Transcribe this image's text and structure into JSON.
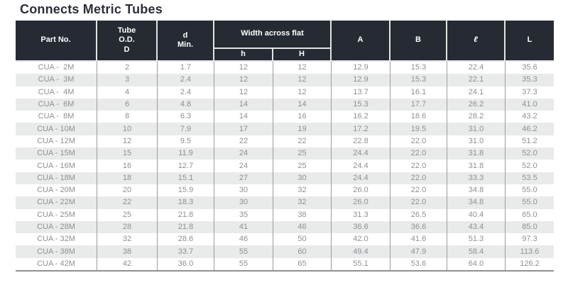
{
  "title": "Connects Metric Tubes",
  "colors": {
    "header_bg": "#262a33",
    "header_text": "#ffffff",
    "row_stripe": "#e9eaea",
    "data_text": "#8d9095",
    "grid_line": "#9c9c9c",
    "title_text": "#2b2f3a"
  },
  "table": {
    "headers": {
      "part_no": "Part No.",
      "tube_od": "Tube\nO.D.\nD",
      "d_min": "d\nMin.",
      "width_across_flat": "Width across flat",
      "h_small": "h",
      "h_big": "H",
      "a": "A",
      "b": "B",
      "ell": "ℓ",
      "l": "L"
    },
    "rows": [
      [
        "CUA -  2M",
        "2",
        "1.7",
        "12",
        "12",
        "12.9",
        "15.3",
        "22.4",
        "35.6"
      ],
      [
        "CUA -  3M",
        "3",
        "2.4",
        "12",
        "12",
        "12.9",
        "15.3",
        "22.1",
        "35.3"
      ],
      [
        "CUA -  4M",
        "4",
        "2.4",
        "12",
        "12",
        "13.7",
        "16.1",
        "24.1",
        "37.3"
      ],
      [
        "CUA -  6M",
        "6",
        "4.8",
        "14",
        "14",
        "15.3",
        "17.7",
        "26.2",
        "41.0"
      ],
      [
        "CUA -  8M",
        "8",
        "6.3",
        "14",
        "16",
        "16.2",
        "18.6",
        "28.2",
        "43.2"
      ],
      [
        "CUA - 10M",
        "10",
        "7.9",
        "17",
        "19",
        "17.2",
        "19.5",
        "31.0",
        "46.2"
      ],
      [
        "CUA - 12M",
        "12",
        "9.5",
        "22",
        "22",
        "22.8",
        "22.0",
        "31.0",
        "51.2"
      ],
      [
        "CUA - 15M",
        "15",
        "11.9",
        "24",
        "25",
        "24.4",
        "22.0",
        "31.8",
        "52.0"
      ],
      [
        "CUA - 16M",
        "16",
        "12.7",
        "24",
        "25",
        "24.4",
        "22.0",
        "31.8",
        "52.0"
      ],
      [
        "CUA - 18M",
        "18",
        "15.1",
        "27",
        "30",
        "24.4",
        "22.0",
        "33.3",
        "53.5"
      ],
      [
        "CUA - 20M",
        "20",
        "15.9",
        "30",
        "32",
        "26.0",
        "22.0",
        "34.8",
        "55.0"
      ],
      [
        "CUA - 22M",
        "22",
        "18.3",
        "30",
        "32",
        "26.0",
        "22.0",
        "34.8",
        "55.0"
      ],
      [
        "CUA - 25M",
        "25",
        "21.8",
        "35",
        "38",
        "31.3",
        "26.5",
        "40.4",
        "65.0"
      ],
      [
        "CUA - 28M",
        "28",
        "21.8",
        "41",
        "46",
        "36.6",
        "36.6",
        "43.4",
        "85.0"
      ],
      [
        "CUA - 32M",
        "32",
        "28.6",
        "46",
        "50",
        "42.0",
        "41.6",
        "51.3",
        "97.3"
      ],
      [
        "CUA - 38M",
        "38",
        "33.7",
        "55",
        "60",
        "49.4",
        "47.9",
        "58.4",
        "113.6"
      ],
      [
        "CUA - 42M",
        "42",
        "36.0",
        "55",
        "65",
        "55.1",
        "53.6",
        "64.0",
        "126.2"
      ]
    ]
  }
}
